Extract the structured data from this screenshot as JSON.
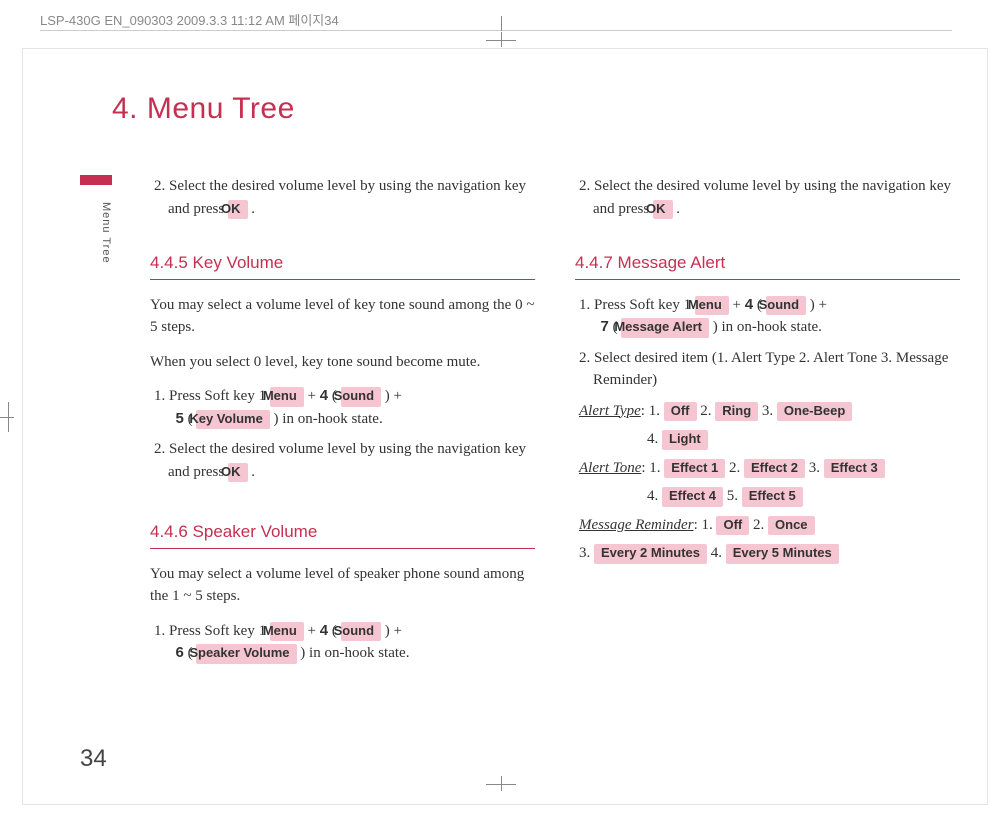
{
  "header": {
    "text": "LSP-430G EN_090303  2009.3.3 11:12 AM  페이지34"
  },
  "chapter": {
    "title": "4. Menu Tree",
    "side_label": "Menu Tree"
  },
  "buttons": {
    "ok": "OK",
    "menu": "Menu",
    "sound": "Sound",
    "key_volume": "Key Volume",
    "speaker_volume": "Speaker Volume",
    "message_alert": "Message Alert",
    "off": "Off",
    "ring": "Ring",
    "one_beep": "One-Beep",
    "light": "Light",
    "effect1": "Effect 1",
    "effect2": "Effect 2",
    "effect3": "Effect 3",
    "effect4": "Effect 4",
    "effect5": "Effect 5",
    "once": "Once",
    "every2": "Every 2 Minutes",
    "every5": "Every 5 Minutes"
  },
  "left": {
    "step2_a": "2. Select the desired volume level by using the navigation key and press ",
    "s445": {
      "head": "4.4.5 Key Volume",
      "p1": "You may select a volume level of key tone sound among the 0 ~ 5 steps.",
      "p2": "When you select 0 level, key tone sound become mute.",
      "step1_pre": "1. Press Soft key 1 ",
      "plus4": " + ",
      "four": "4",
      "lp": "( ",
      "rp": " ) + ",
      "five": "5",
      "tail": " ) in on-hook state.",
      "step2": "2. Select the desired volume level by using the navigation key and press "
    },
    "s446": {
      "head": "4.4.6 Speaker Volume",
      "p1": "You may select a volume level of speaker phone sound among the 1 ~ 5 steps.",
      "step1_pre": "1. Press Soft key 1 ",
      "six": "6",
      "tail": " ) in on-hook state."
    }
  },
  "right": {
    "step2": "2. Select the desired volume level by using the navigation key and press ",
    "s447": {
      "head": "4.4.7 Message Alert",
      "step1_pre": "1. Press Soft key 1 ",
      "four": "4",
      "seven": "7",
      "tail": " ) in on-hook state.",
      "step2": "2. Select desired item (1. Alert Type   2. Alert Tone 3. Message Reminder)",
      "alert_type_label": "Alert Type",
      "alert_tone_label": "Alert Tone",
      "msg_reminder_label": "Message Reminder",
      "n1": ": 1. ",
      "n2": "  2. ",
      "n3": "  3. ",
      "n4": "4. ",
      "n5": "  5. ",
      "mr1": ":  1. ",
      "mr2": "  2. ",
      "mr3": "3. ",
      "mr4": "  4. "
    }
  },
  "page_number": "34",
  "colors": {
    "accent": "#c53050",
    "button_bg": "#f5c6d1",
    "text": "#333333",
    "header_text": "#888888"
  }
}
